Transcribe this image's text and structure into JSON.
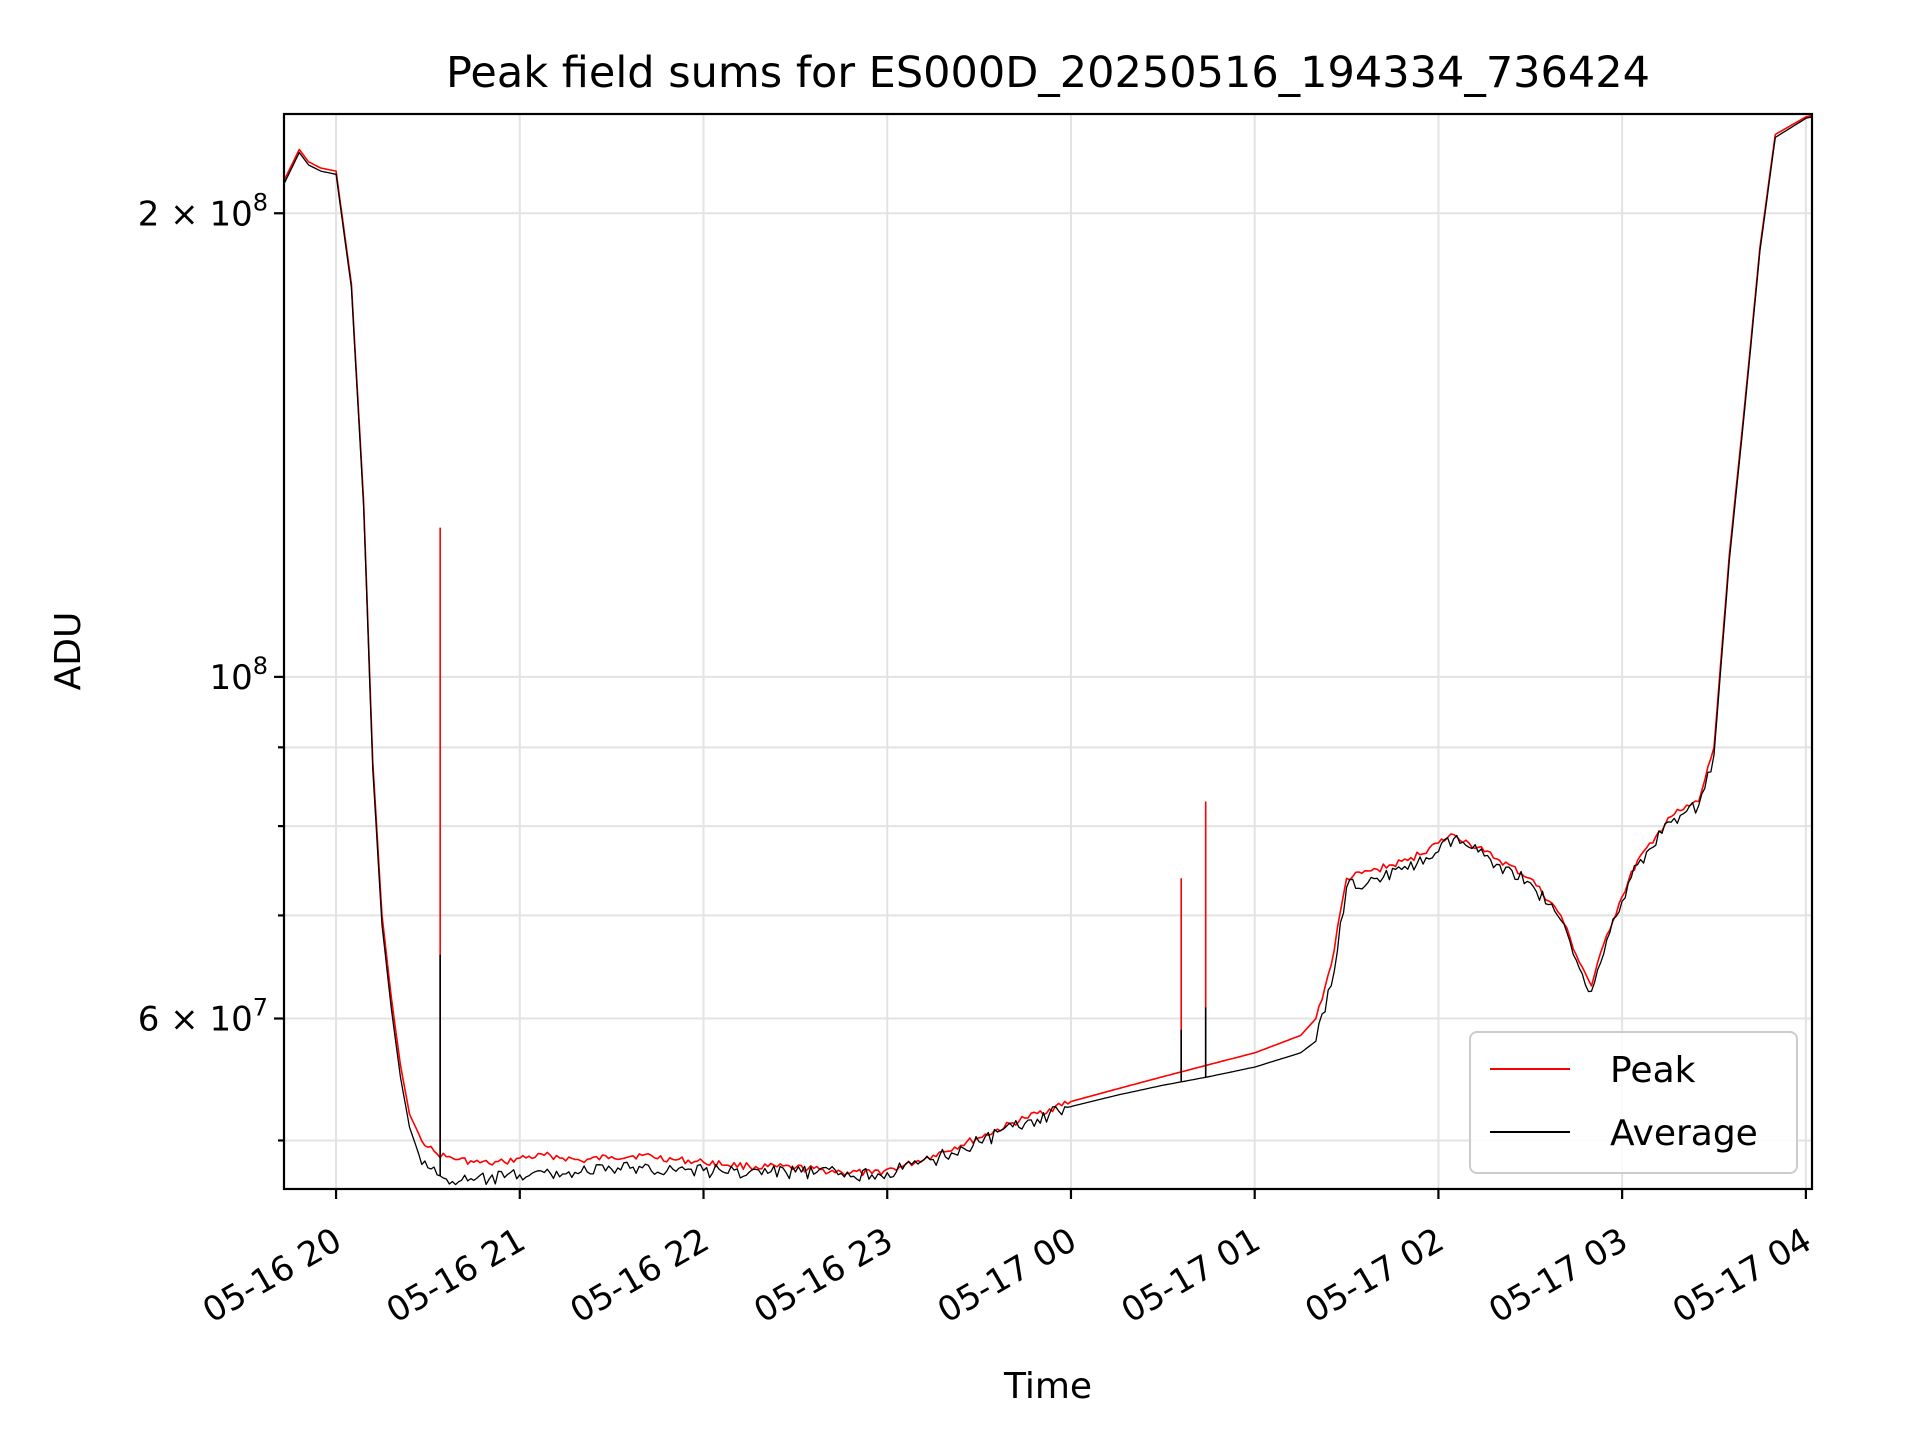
{
  "chart_data": {
    "type": "line",
    "title": "Peak field sums for ES000D_20250516_194334_736424",
    "xlabel": "Time",
    "ylabel": "ADU",
    "x_tick_labels": [
      "05-16 20",
      "05-16 21",
      "05-16 22",
      "05-16 23",
      "05-17 00",
      "05-17 01",
      "05-17 02",
      "05-17 03",
      "05-17 04"
    ],
    "x_tick_times": [
      "2025-05-16 20:00",
      "2025-05-16 21:00",
      "2025-05-16 22:00",
      "2025-05-16 23:00",
      "2025-05-17 00:00",
      "2025-05-17 01:00",
      "2025-05-17 02:00",
      "2025-05-17 03:00",
      "2025-05-17 04:00"
    ],
    "xlim": [
      "2025-05-16 19:43",
      "2025-05-17 04:02"
    ],
    "y_scale": "log",
    "ylim": [
      46500000,
      232000000
    ],
    "y_major_ticks": [
      {
        "value": 200000000,
        "base": "2 × 10",
        "exp": "8"
      },
      {
        "value": 100000000,
        "base": "10",
        "exp": "8"
      },
      {
        "value": 60000000,
        "base": "6 × 10",
        "exp": "7"
      }
    ],
    "y_minor_ticks": [
      50000000,
      70000000,
      80000000,
      90000000
    ],
    "grid": true,
    "legend_position": "lower right",
    "x": [
      "2025-05-16 19:43",
      "2025-05-16 19:48",
      "2025-05-16 19:51",
      "2025-05-16 19:55",
      "2025-05-16 20:00",
      "2025-05-16 20:05",
      "2025-05-16 20:09",
      "2025-05-16 20:12",
      "2025-05-16 20:15",
      "2025-05-16 20:18",
      "2025-05-16 20:21",
      "2025-05-16 20:24",
      "2025-05-16 20:27",
      "2025-05-16 20:30",
      "2025-05-16 20:33",
      "2025-05-16 20:36",
      "2025-05-16 20:40",
      "2025-05-16 20:45",
      "2025-05-16 20:50",
      "2025-05-16 20:55",
      "2025-05-16 21:00",
      "2025-05-16 21:10",
      "2025-05-16 21:20",
      "2025-05-16 21:30",
      "2025-05-16 21:40",
      "2025-05-16 21:50",
      "2025-05-16 22:00",
      "2025-05-16 22:15",
      "2025-05-16 22:30",
      "2025-05-16 22:45",
      "2025-05-16 22:55",
      "2025-05-16 23:05",
      "2025-05-16 23:15",
      "2025-05-16 23:30",
      "2025-05-16 23:45",
      "2025-05-17 00:00",
      "2025-05-17 00:15",
      "2025-05-17 00:30",
      "2025-05-17 00:45",
      "2025-05-17 01:00",
      "2025-05-17 01:15",
      "2025-05-17 01:20",
      "2025-05-17 01:25",
      "2025-05-17 01:30",
      "2025-05-17 01:40",
      "2025-05-17 01:50",
      "2025-05-17 02:00",
      "2025-05-17 02:05",
      "2025-05-17 02:10",
      "2025-05-17 02:15",
      "2025-05-17 02:20",
      "2025-05-17 02:30",
      "2025-05-17 02:40",
      "2025-05-17 02:45",
      "2025-05-17 02:50",
      "2025-05-17 02:55",
      "2025-05-17 03:00",
      "2025-05-17 03:05",
      "2025-05-17 03:10",
      "2025-05-17 03:15",
      "2025-05-17 03:20",
      "2025-05-17 03:25",
      "2025-05-17 03:30",
      "2025-05-17 03:35",
      "2025-05-17 03:40",
      "2025-05-17 03:45",
      "2025-05-17 03:50",
      "2025-05-17 04:00",
      "2025-05-17 04:02"
    ],
    "series": [
      {
        "name": "Peak",
        "color": "#ff0000",
        "values": [
          210000000,
          220000000,
          216000000,
          214000000,
          213000000,
          180000000,
          130000000,
          88000000,
          70000000,
          62000000,
          56000000,
          52000000,
          50500000,
          49500000,
          49000000,
          48800000,
          48600000,
          48400000,
          48300000,
          48400000,
          48700000,
          48900000,
          48500000,
          48800000,
          48900000,
          48600000,
          48400000,
          48100000,
          48000000,
          47700000,
          47600000,
          48100000,
          48900000,
          50200000,
          51700000,
          53000000,
          54000000,
          55000000,
          56000000,
          57000000,
          58500000,
          60000000,
          65000000,
          74000000,
          75000000,
          76000000,
          78000000,
          79000000,
          78000000,
          77000000,
          76000000,
          74000000,
          70000000,
          66000000,
          63000000,
          68000000,
          72000000,
          76000000,
          78000000,
          81000000,
          82000000,
          83000000,
          90000000,
          120000000,
          150000000,
          190000000,
          225000000,
          231000000,
          231500000
        ]
      },
      {
        "name": "Average",
        "color": "#000000",
        "values": [
          209000000,
          219000000,
          215000000,
          213000000,
          212000000,
          179000000,
          129000000,
          87000000,
          69000000,
          61000000,
          55000000,
          51000000,
          49000000,
          48000000,
          47500000,
          47200000,
          47000000,
          47100000,
          47200000,
          47300000,
          47500000,
          47600000,
          47700000,
          47900000,
          48000000,
          47900000,
          47800000,
          47700000,
          47700000,
          47600000,
          47500000,
          47900000,
          48600000,
          49900000,
          51300000,
          52600000,
          53500000,
          54300000,
          55000000,
          55800000,
          57000000,
          58000000,
          63000000,
          73000000,
          74000000,
          75000000,
          77000000,
          78500000,
          77500000,
          76500000,
          75500000,
          73500000,
          69500000,
          65500000,
          62500000,
          67500000,
          71500000,
          75500000,
          77500000,
          80500000,
          81500000,
          82500000,
          89000000,
          119000000,
          149000000,
          189000000,
          224000000,
          230500000,
          231000000
        ]
      }
    ],
    "spikes": [
      {
        "series": "Peak",
        "x": "2025-05-16 20:34",
        "value": 125000000
      },
      {
        "series": "Average",
        "x": "2025-05-16 20:34",
        "value": 66000000
      },
      {
        "series": "Peak",
        "x": "2025-05-17 00:36",
        "value": 74000000
      },
      {
        "series": "Average",
        "x": "2025-05-17 00:36",
        "value": 59000000
      },
      {
        "series": "Peak",
        "x": "2025-05-17 00:44",
        "value": 83000000
      },
      {
        "series": "Average",
        "x": "2025-05-17 00:44",
        "value": 61000000
      }
    ],
    "legend": [
      {
        "label": "Peak",
        "color": "#ff0000"
      },
      {
        "label": "Average",
        "color": "#000000"
      }
    ]
  }
}
